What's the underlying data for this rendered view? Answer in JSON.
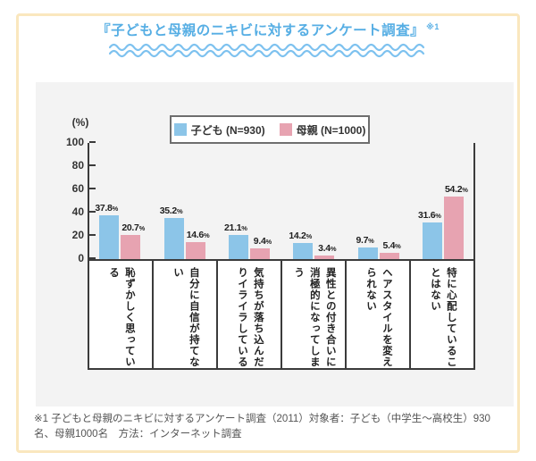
{
  "page": {
    "title": "『子どもと母親のニキビに対するアンケート調査』",
    "title_note": "※1",
    "footnote": "※1 子どもと母親のニキビに対するアンケート調査（2011）対象者：子ども（中学生～高校生）930名、母親1000名　方法：インターネット調査"
  },
  "colors": {
    "title_blue": "#56aee4",
    "wave_blue": "#7ec2ef",
    "frame_cream": "#fae7be",
    "panel_gray": "#f3f3f3",
    "child_blue": "#8cc5e8",
    "mother_pink": "#e7a3b1"
  },
  "chart_data": {
    "type": "bar",
    "title": "子どもと母親のニキビに対するアンケート調査",
    "axis_label": "(%)",
    "unit": "%",
    "ylim": [
      0,
      100
    ],
    "y_ticks": [
      0,
      20,
      40,
      60,
      80,
      100
    ],
    "grid": false,
    "legend_position": "top",
    "categories": [
      "恥ずかしく思っている",
      "自分に自信が持てない",
      "気持ちが落ち込んだりイライラしている",
      "異性との付き合いに消極的になってしまう",
      "ヘアスタイルを変えられない",
      "特に心配していることはない"
    ],
    "series": [
      {
        "name": "子ども (N=930)",
        "color": "#8cc5e8",
        "values": [
          37.8,
          35.2,
          21.1,
          14.2,
          9.7,
          31.6
        ]
      },
      {
        "name": "母親 (N=1000)",
        "color": "#e7a3b1",
        "values": [
          20.7,
          14.6,
          9.4,
          3.4,
          5.4,
          54.2
        ]
      }
    ]
  }
}
